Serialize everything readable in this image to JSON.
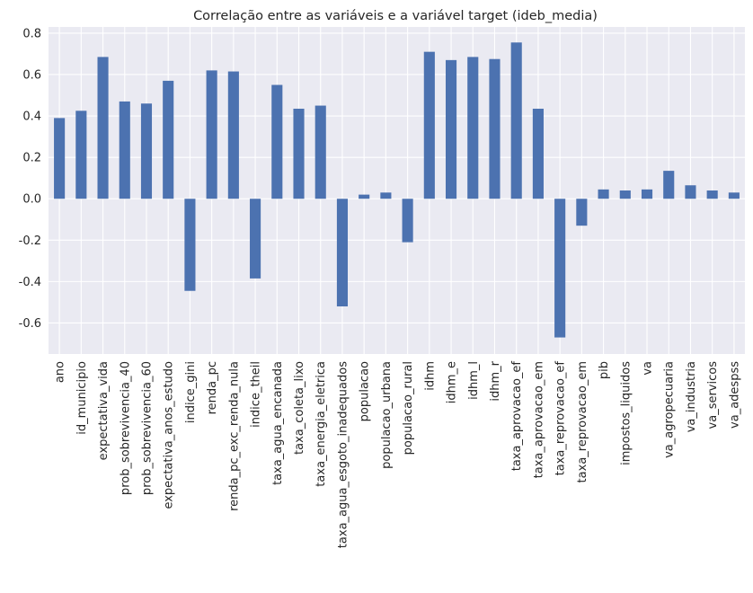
{
  "chart_data": {
    "type": "bar",
    "title": "Correlação entre as variáveis e a variável target (ideb_media)",
    "xlabel": "",
    "ylabel": "",
    "ylim": [
      -0.75,
      0.83
    ],
    "yticks": [
      -0.6,
      -0.4,
      -0.2,
      0.0,
      0.2,
      0.4,
      0.6,
      0.8
    ],
    "ytick_labels": [
      "-0.6",
      "-0.4",
      "-0.2",
      "0.0",
      "0.2",
      "0.4",
      "0.6",
      "0.8"
    ],
    "grid": true,
    "categories": [
      "ano",
      "id_municipio",
      "expectativa_vida",
      "prob_sobrevivencia_40",
      "prob_sobrevivencia_60",
      "expectativa_anos_estudo",
      "indice_gini",
      "renda_pc",
      "renda_pc_exc_renda_nula",
      "indice_theil",
      "taxa_agua_encanada",
      "taxa_coleta_lixo",
      "taxa_energia_eletrica",
      "taxa_agua_esgoto_inadequados",
      "populacao",
      "populacao_urbana",
      "populacao_rural",
      "idhm",
      "idhm_e",
      "idhm_l",
      "idhm_r",
      "taxa_aprovacao_ef",
      "taxa_aprovacao_em",
      "taxa_reprovacao_ef",
      "taxa_reprovacao_em",
      "pib",
      "impostos_liquidos",
      "va",
      "va_agropecuaria",
      "va_industria",
      "va_servicos",
      "va_adespss"
    ],
    "values": [
      0.39,
      0.425,
      0.685,
      0.47,
      0.46,
      0.57,
      -0.445,
      0.62,
      0.615,
      -0.385,
      0.55,
      0.435,
      0.45,
      -0.52,
      0.02,
      0.03,
      -0.21,
      0.71,
      0.67,
      0.685,
      0.675,
      0.755,
      0.435,
      -0.67,
      -0.13,
      0.045,
      0.04,
      0.045,
      0.135,
      0.065,
      0.04,
      0.03
    ],
    "colors": {
      "bar": "#4c72b0",
      "background": "#eaeaf2",
      "grid": "#ffffff",
      "text": "#262626"
    }
  }
}
